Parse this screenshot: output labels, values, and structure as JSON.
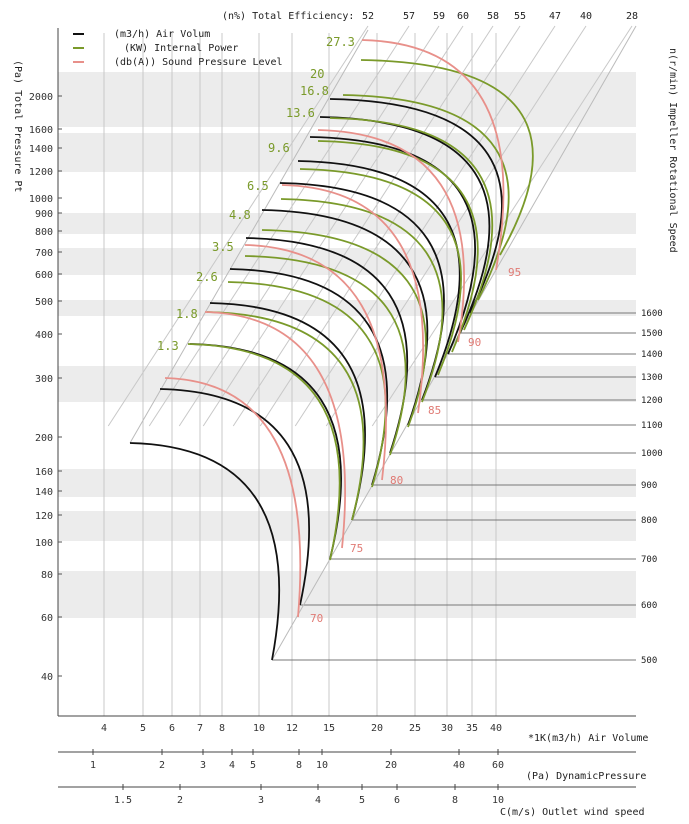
{
  "chart_data": {
    "type": "line",
    "legend": [
      {
        "label": "(m3/h) Air Volum",
        "color": "#111111"
      },
      {
        "label": "(KW) Internal Power",
        "color": "#7a9a2a"
      },
      {
        "label": "(db(A)) Sound Pressure Level",
        "color": "#e8908a"
      }
    ],
    "title_top": "(n%) Total Efficiency:",
    "ylabel": "(Pa) Total Pressure Pt",
    "ylabel_right": "n(r/min) Impeller Rotational Speed",
    "xlabel": "*1K(m3/h) Air Volume",
    "xlabel2": "(Pa) DynamicPressure",
    "xlabel3": "C(m/s) Outlet wind speed",
    "y_ticks": [
      "40",
      "60",
      "80",
      "100",
      "120",
      "140",
      "160",
      "200",
      "300",
      "400",
      "500",
      "600",
      "700",
      "800",
      "900",
      "1000",
      "1200",
      "1400",
      "1600",
      "2000"
    ],
    "x_ticks": [
      "4",
      "5",
      "6",
      "7",
      "8",
      "10",
      "12",
      "15",
      "20",
      "25",
      "30",
      "35",
      "40"
    ],
    "dynamic_pressure_ticks": [
      "1",
      "2",
      "3",
      "4",
      "5",
      "8",
      "10",
      "20",
      "40",
      "60"
    ],
    "wind_speed_ticks": [
      "1.5",
      "2",
      "3",
      "4",
      "5",
      "6",
      "8",
      "10"
    ],
    "efficiency_ticks": [
      "52",
      "57",
      "59",
      "60",
      "58",
      "55",
      "47",
      "40",
      "28"
    ],
    "power_labels": [
      "1.3",
      "1.8",
      "2.6",
      "3.5",
      "4.8",
      "6.5",
      "9.6",
      "13.6",
      "16.8",
      "20",
      "27.3"
    ],
    "sound_labels": [
      "70",
      "75",
      "80",
      "85",
      "90",
      "95"
    ],
    "speed_labels": [
      "500",
      "600",
      "700",
      "800",
      "900",
      "1000",
      "1100",
      "1200",
      "1300",
      "1400",
      "1500",
      "1600"
    ],
    "colors": {
      "air": "#111111",
      "power": "#7a9a2a",
      "sound": "#e8908a",
      "band": "#ececec",
      "grid": "#c8c8c8"
    }
  }
}
